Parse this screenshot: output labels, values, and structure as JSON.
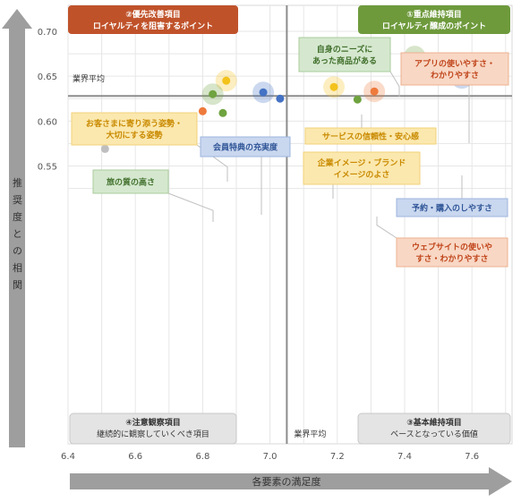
{
  "chart_data": {
    "type": "scatter",
    "xlabel": "各要素の満足度",
    "ylabel": "推奨度との相関",
    "xlim": [
      6.4,
      7.7
    ],
    "ylim": [
      0.55,
      0.705
    ],
    "xticks": [
      "6.4",
      "6.6",
      "6.8",
      "7.0",
      "7.2",
      "7.4",
      "7.6"
    ],
    "yticks": [
      "0.70",
      "0.65",
      "0.60",
      "0.55"
    ],
    "grid": true,
    "industry_avg_x": 7.05,
    "industry_avg_y": 0.628,
    "industry_avg_label": "業界平均",
    "quadrants": {
      "top_left": {
        "line1": "②優先改善項目",
        "line2": "ロイヤルティを阻害するポイント",
        "color": "#C0522A"
      },
      "top_right": {
        "line1": "①重点維持項目",
        "line2": "ロイヤルティ醸成のポイント",
        "color": "#6E9A3C"
      },
      "bottom_left": {
        "line1": "④注意観察項目",
        "line2": "継続的に観察していくべき項目"
      },
      "bottom_right": {
        "line1": "③基本維持項目",
        "line2": "ベースとなっている価値"
      }
    },
    "points": [
      {
        "x": 7.43,
        "y": 0.672,
        "color": "#6FA33F",
        "halo": true
      },
      {
        "x": 7.27,
        "y": 0.67,
        "color": "#F3C21B",
        "halo": true
      },
      {
        "x": 7.59,
        "y": 0.657,
        "color": "#EE7A3C",
        "halo": true
      },
      {
        "x": 7.57,
        "y": 0.648,
        "color": "#4472C4",
        "halo": true
      },
      {
        "x": 6.87,
        "y": 0.645,
        "color": "#F3C21B",
        "halo": true
      },
      {
        "x": 7.19,
        "y": 0.638,
        "color": "#F3C21B",
        "halo": true
      },
      {
        "x": 7.31,
        "y": 0.633,
        "color": "#EE7A3C",
        "halo": true
      },
      {
        "x": 6.98,
        "y": 0.632,
        "color": "#4472C4",
        "halo": true
      },
      {
        "x": 6.83,
        "y": 0.63,
        "color": "#6FA33F",
        "halo": true
      },
      {
        "x": 7.03,
        "y": 0.625,
        "color": "#4472C4",
        "halo": false
      },
      {
        "x": 7.26,
        "y": 0.624,
        "color": "#6FA33F",
        "halo": false
      },
      {
        "x": 6.8,
        "y": 0.611,
        "color": "#EE7A3C",
        "halo": false
      },
      {
        "x": 6.86,
        "y": 0.609,
        "color": "#6FA33F",
        "halo": false
      },
      {
        "x": 6.68,
        "y": 0.602,
        "color": "#BFBFBF",
        "halo": false
      },
      {
        "x": 6.65,
        "y": 0.6,
        "color": "#BFBFBF",
        "halo": false
      },
      {
        "x": 6.51,
        "y": 0.569,
        "color": "#BFBFBF",
        "halo": false
      }
    ],
    "annotations": [
      {
        "line1": "自身のニーズに",
        "line2": "あった商品がある",
        "color": "green"
      },
      {
        "line1": "アプリの使いやすさ・",
        "line2": "わかりやすさ",
        "color": "orange"
      },
      {
        "line1": "サービスの信頼性・安心感",
        "line2": "",
        "color": "yellow"
      },
      {
        "line1": "企業イメージ・ブランド",
        "line2": "イメージのよさ",
        "color": "yellow"
      },
      {
        "line1": "予約・購入のしやすさ",
        "line2": "",
        "color": "blue"
      },
      {
        "line1": "ウェブサイトの使いや",
        "line2": "すさ・わかりやすさ",
        "color": "orange"
      },
      {
        "line1": "お客さまに寄り添う姿勢・",
        "line2": "大切にする姿勢",
        "color": "yellow"
      },
      {
        "line1": "会員特典の充実度",
        "line2": "",
        "color": "blue"
      },
      {
        "line1": "旅の質の高さ",
        "line2": "",
        "color": "green"
      }
    ]
  }
}
